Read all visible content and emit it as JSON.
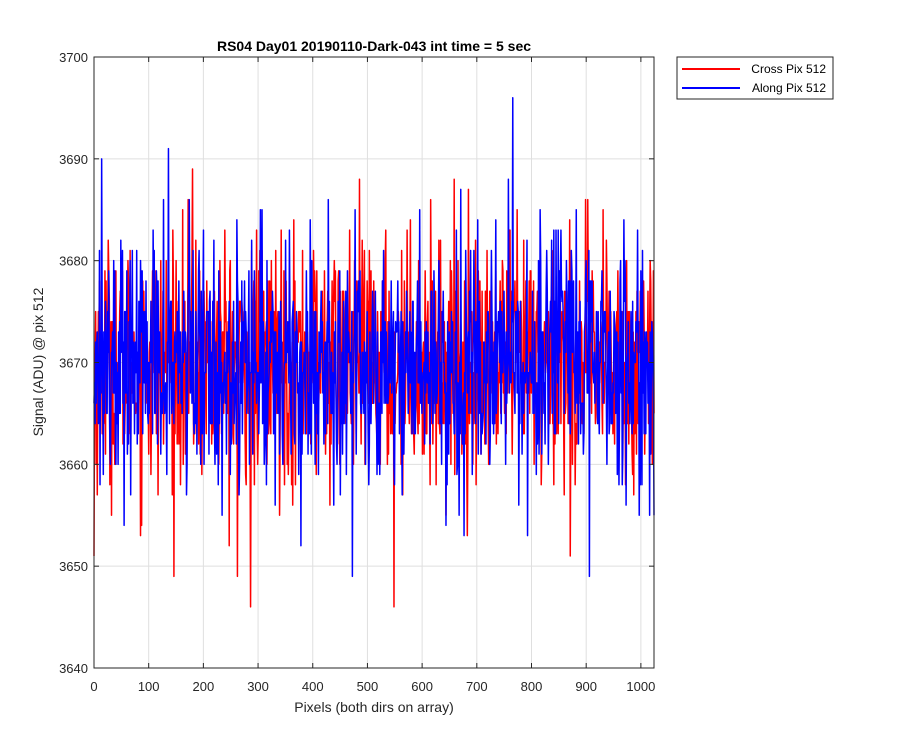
{
  "chart_data": {
    "type": "line",
    "title": "RS04 Day01 20190110-Dark-043 int time = 5 sec",
    "xlabel": "Pixels (both dirs on array)",
    "ylabel": "Signal (ADU) @ pix 512",
    "xlim": [
      0,
      1024
    ],
    "ylim": [
      3640,
      3700
    ],
    "xticks": [
      0,
      100,
      200,
      300,
      400,
      500,
      600,
      700,
      800,
      900,
      1000
    ],
    "yticks": [
      3640,
      3650,
      3660,
      3670,
      3680,
      3690,
      3700
    ],
    "grid": true,
    "legend_position": "outside-top-right",
    "noise_model": {
      "mean": 3670,
      "n_points": 1024
    },
    "series": [
      {
        "name": "Cross Pix 512",
        "color": "#ff0000",
        "std": 6,
        "notable_points": [
          {
            "x": 0,
            "y": 3651
          },
          {
            "x": 180,
            "y": 3689
          },
          {
            "x": 262,
            "y": 3649
          },
          {
            "x": 286,
            "y": 3646
          },
          {
            "x": 548,
            "y": 3646
          },
          {
            "x": 870,
            "y": 3651
          }
        ]
      },
      {
        "name": "Along Pix 512",
        "color": "#0000ff",
        "std": 6,
        "notable_points": [
          {
            "x": 14,
            "y": 3690
          },
          {
            "x": 136,
            "y": 3691
          },
          {
            "x": 472,
            "y": 3649
          },
          {
            "x": 765,
            "y": 3696
          },
          {
            "x": 905,
            "y": 3649
          }
        ]
      }
    ]
  }
}
